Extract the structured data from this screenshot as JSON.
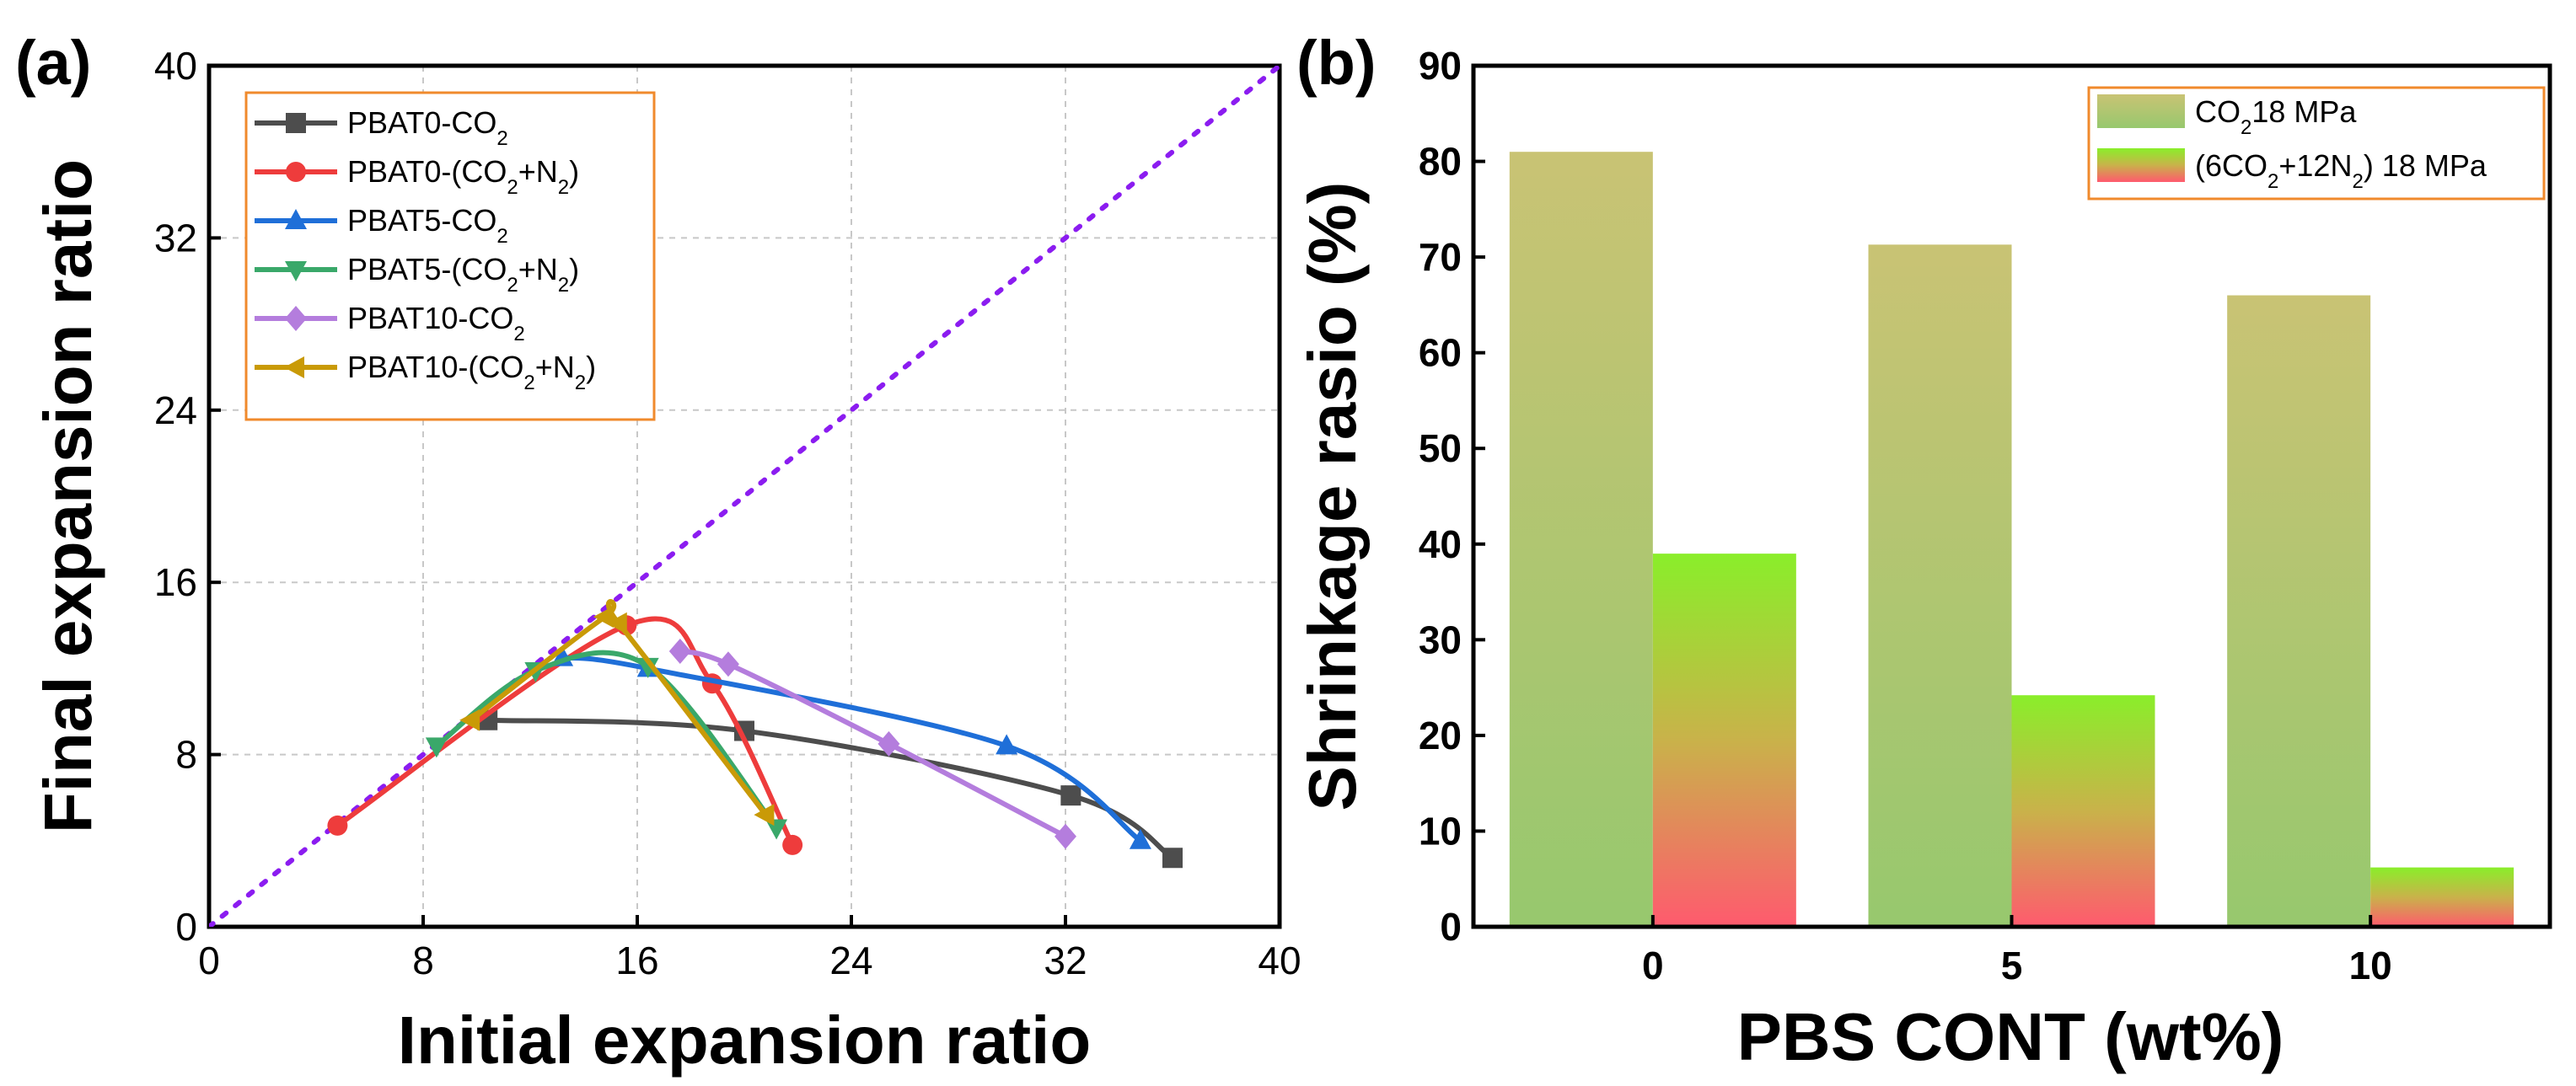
{
  "chart_data": [
    {
      "panel": "(a)",
      "type": "line",
      "xlabel": "Initial expansion ratio",
      "ylabel": "Final expansion ratio",
      "xlim": [
        0,
        40
      ],
      "ylim": [
        0,
        40
      ],
      "xticks": [
        "0",
        "8",
        "16",
        "24",
        "32",
        "40"
      ],
      "yticks": [
        "0",
        "8",
        "16",
        "24",
        "32",
        "40"
      ],
      "grid": true,
      "legend_position": "top-left",
      "reference_line": {
        "name": "y = x",
        "style": "dotted",
        "color": "#8b1cf0",
        "x": [
          0,
          40
        ],
        "y": [
          0,
          40
        ]
      },
      "series": [
        {
          "name": "PBAT0-CO2",
          "label_main": "PBAT0-CO",
          "label_sub": "2",
          "label_tail": "",
          "color": "#4d4d4d",
          "marker": "square",
          "x": [
            10.4,
            20.0,
            32.2,
            36.0
          ],
          "y": [
            9.6,
            9.1,
            6.1,
            3.2
          ]
        },
        {
          "name": "PBAT0-(CO2+N2)",
          "label_main": "PBAT0-(CO",
          "label_sub": "2",
          "label_mid": "+N",
          "label_sub2": "2",
          "label_tail": ")",
          "color": "#ee3c3c",
          "marker": "circle",
          "x": [
            4.8,
            15.6,
            18.8,
            21.8
          ],
          "y": [
            4.7,
            14.0,
            11.3,
            3.8
          ]
        },
        {
          "name": "PBAT5-CO2",
          "label_main": "PBAT5-CO",
          "label_sub": "2",
          "label_tail": "",
          "color": "#1f6fd8",
          "marker": "triangle-up",
          "x": [
            13.2,
            16.4,
            29.8,
            34.8
          ],
          "y": [
            12.5,
            12.0,
            8.4,
            4.0
          ]
        },
        {
          "name": "PBAT5-(CO2+N2)",
          "label_main": "PBAT5-(CO",
          "label_sub": "2",
          "label_mid": "+N",
          "label_sub2": "2",
          "label_tail": ")",
          "color": "#3aa86a",
          "marker": "triangle-down",
          "x": [
            8.5,
            12.2,
            16.4,
            21.2
          ],
          "y": [
            8.4,
            11.9,
            12.1,
            4.6
          ]
        },
        {
          "name": "PBAT10-CO2",
          "label_main": "PBAT10-CO",
          "label_sub": "2",
          "label_tail": "",
          "color": "#b47ddd",
          "marker": "diamond",
          "x": [
            17.6,
            19.4,
            25.4,
            32.0
          ],
          "y": [
            12.8,
            12.2,
            8.5,
            4.2
          ]
        },
        {
          "name": "PBAT10-(CO2+N2)",
          "label_main": "PBAT10-(CO",
          "label_sub": "2",
          "label_mid": "+N",
          "label_sub2": "2",
          "label_tail": ")",
          "color": "#c99a07",
          "marker": "triangle-left",
          "x": [
            9.8,
            14.8,
            15.3,
            20.8
          ],
          "y": [
            9.6,
            14.4,
            14.1,
            5.2
          ]
        }
      ]
    },
    {
      "panel": "(b)",
      "type": "bar",
      "xlabel": "PBS CONT (wt%)",
      "ylabel": "Shrinkage rasio (%)",
      "ylim": [
        0,
        90
      ],
      "yticks": [
        "0",
        "10",
        "20",
        "30",
        "40",
        "50",
        "60",
        "70",
        "80",
        "90"
      ],
      "categories": [
        "0",
        "5",
        "10"
      ],
      "legend_position": "top-right",
      "series": [
        {
          "name": "CO2 18 MPa",
          "label_pre": "CO",
          "label_sub": "2",
          "label_post": "18 MPa",
          "values": [
            81.0,
            71.3,
            66.0
          ]
        },
        {
          "name": "(6CO2+12N2) 18 MPa",
          "label_pre": "(6CO",
          "label_sub": "2",
          "label_mid": "+12N",
          "label_sub2": "2",
          "label_post": ") 18 MPa",
          "values": [
            39.0,
            24.2,
            6.2
          ]
        }
      ]
    }
  ]
}
